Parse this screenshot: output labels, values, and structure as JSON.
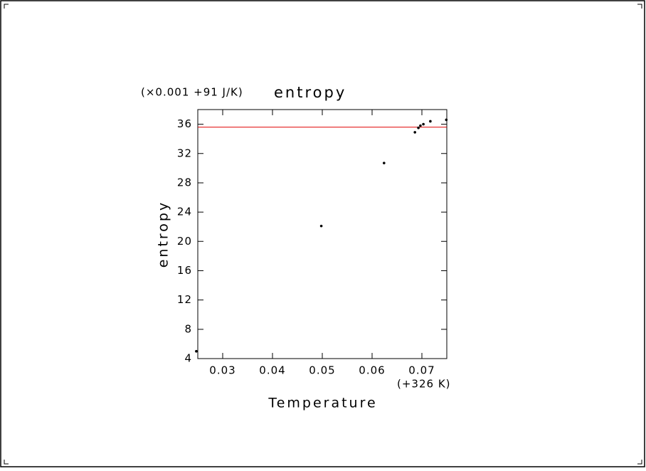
{
  "chart_data": {
    "type": "scatter",
    "title": "entropy",
    "y_offset_label": "(×0.001 +91 J/K)",
    "x_offset_label": "(+326 K)",
    "xlabel": "Temperature",
    "ylabel": "entropy",
    "x": [
      0.0247,
      0.0498,
      0.0624,
      0.0686,
      0.0693,
      0.0697,
      0.0703,
      0.0717,
      0.0749
    ],
    "values": [
      5.0,
      22.1,
      30.7,
      34.9,
      35.5,
      35.8,
      36.0,
      36.4,
      36.6
    ],
    "color": "#000000",
    "reference_line": {
      "value": 35.6,
      "color": "#e00000"
    },
    "xlim": [
      0.025,
      0.075
    ],
    "xticks": [
      0.03,
      0.04,
      0.05,
      0.06,
      0.07
    ],
    "ylim": [
      4,
      38
    ],
    "yticks": [
      4,
      8,
      12,
      16,
      20,
      24,
      28,
      32,
      36
    ]
  }
}
